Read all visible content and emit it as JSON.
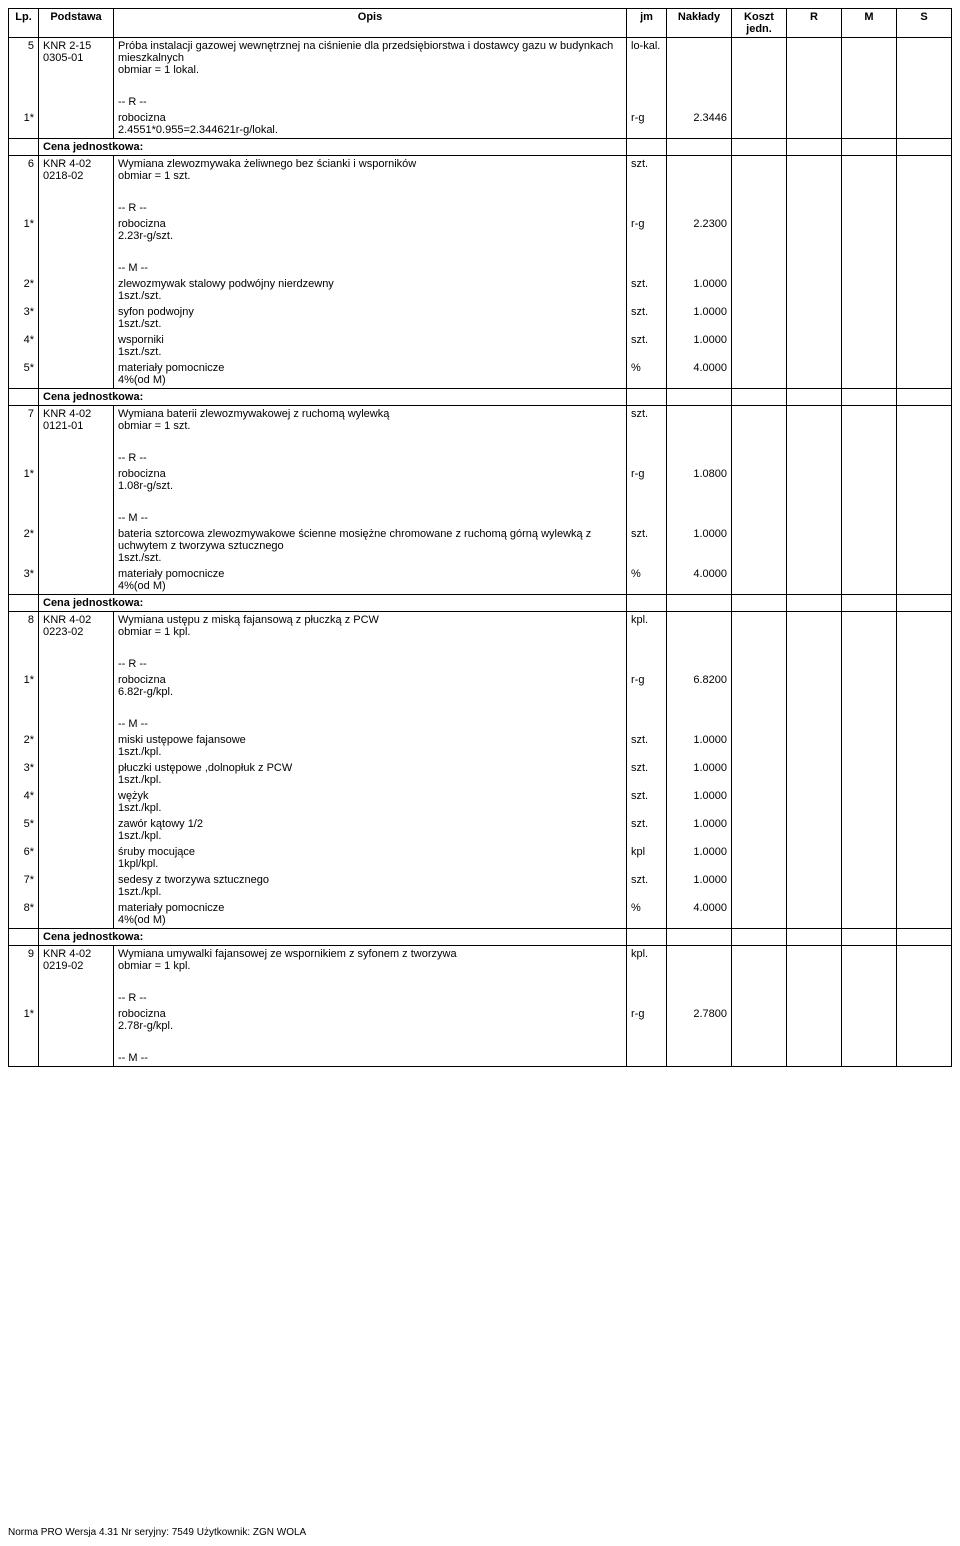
{
  "headers": {
    "lp": "Lp.",
    "podstawa": "Podstawa",
    "opis": "Opis",
    "jm": "jm",
    "naklady": "Nakłady",
    "koszt": "Koszt jedn.",
    "r": "R",
    "m": "M",
    "s": "S"
  },
  "cena_label": "Cena jednostkowa:",
  "r_label": "-- R --",
  "m_label": "-- M --",
  "rows": [
    {
      "lp": "5",
      "podstawa": "KNR 2-15\n0305-01",
      "opis": "Próba instalacji gazowej wewnętrznej na ciśnienie dla przedsiębiorstwa i dostawcy gazu w budynkach mieszkalnych\nobmiar  = 1 lokal.",
      "jm": "lo-kal."
    },
    {
      "blank": true
    },
    {
      "r": true
    },
    {
      "lp": "1*",
      "opis": "robocizna\n2.4551*0.955=2.344621r-g/lokal.",
      "jm": "r-g",
      "nak": "2.3446"
    },
    {
      "cena": true
    },
    {
      "lp": "6",
      "podstawa": "KNR 4-02\n0218-02",
      "opis": "Wymiana zlewozmywaka żeliwnego bez ścianki i wsporników\nobmiar  = 1 szt.",
      "jm": "szt."
    },
    {
      "blank": true
    },
    {
      "r": true
    },
    {
      "lp": "1*",
      "opis": "robocizna\n2.23r-g/szt.",
      "jm": "r-g",
      "nak": "2.2300"
    },
    {
      "blank": true
    },
    {
      "m": true
    },
    {
      "lp": "2*",
      "opis": "zlewozmywak stalowy podwójny nierdzewny\n1szt./szt.",
      "jm": "szt.",
      "nak": "1.0000"
    },
    {
      "lp": "3*",
      "opis": "syfon podwojny\n1szt./szt.",
      "jm": "szt.",
      "nak": "1.0000"
    },
    {
      "lp": "4*",
      "opis": "wsporniki\n1szt./szt.",
      "jm": "szt.",
      "nak": "1.0000"
    },
    {
      "lp": "5*",
      "opis": "materiały pomocnicze\n4%(od M)",
      "jm": "%",
      "nak": "4.0000"
    },
    {
      "cena": true
    },
    {
      "lp": "7",
      "podstawa": "KNR 4-02\n0121-01",
      "opis": "Wymiana baterii   zlewozmywakowej z ruchomą wylewką\nobmiar  = 1 szt.",
      "jm": "szt."
    },
    {
      "blank": true
    },
    {
      "r": true
    },
    {
      "lp": "1*",
      "opis": "robocizna\n1.08r-g/szt.",
      "jm": "r-g",
      "nak": "1.0800"
    },
    {
      "blank": true
    },
    {
      "m": true
    },
    {
      "lp": "2*",
      "opis": "bateria   sztorcowa  zlewozmywakowe ścienne mosiężne chromowane z ruchomą górną wylewką z uchwytem z tworzywa sztucznego\n1szt./szt.",
      "jm": "szt.",
      "nak": "1.0000"
    },
    {
      "lp": "3*",
      "opis": "materiały pomocnicze\n4%(od M)",
      "jm": "%",
      "nak": "4.0000"
    },
    {
      "cena": true
    },
    {
      "lp": "8",
      "podstawa": "KNR 4-02\n0223-02",
      "opis": "Wymiana ustępu z miską fajansową z płuczką z PCW\nobmiar  = 1 kpl.",
      "jm": "kpl."
    },
    {
      "blank": true
    },
    {
      "r": true
    },
    {
      "lp": "1*",
      "opis": "robocizna\n6.82r-g/kpl.",
      "jm": "r-g",
      "nak": "6.8200"
    },
    {
      "blank": true
    },
    {
      "m": true
    },
    {
      "lp": "2*",
      "opis": "miski ustępowe fajansowe\n1szt./kpl.",
      "jm": "szt.",
      "nak": "1.0000"
    },
    {
      "lp": "3*",
      "opis": "płuczki ustępowe ,dolnopłuk z PCW\n1szt./kpl.",
      "jm": "szt.",
      "nak": "1.0000"
    },
    {
      "lp": "4*",
      "opis": "wężyk\n1szt./kpl.",
      "jm": "szt.",
      "nak": "1.0000"
    },
    {
      "lp": "5*",
      "opis": "zawór kątowy 1/2\n1szt./kpl.",
      "jm": "szt.",
      "nak": "1.0000"
    },
    {
      "lp": "6*",
      "opis": "śruby mocujące\n1kpl/kpl.",
      "jm": "kpl",
      "nak": "1.0000"
    },
    {
      "lp": "7*",
      "opis": "sedesy z tworzywa sztucznego\n1szt./kpl.",
      "jm": "szt.",
      "nak": "1.0000"
    },
    {
      "lp": "8*",
      "opis": "materiały pomocnicze\n4%(od M)",
      "jm": "%",
      "nak": "4.0000"
    },
    {
      "cena": true
    },
    {
      "lp": "9",
      "podstawa": "KNR 4-02\n0219-02",
      "opis": "Wymiana umywalki fajansowej ze wspornikiem z syfonem z tworzywa\nobmiar  = 1 kpl.",
      "jm": "kpl."
    },
    {
      "blank": true
    },
    {
      "r": true
    },
    {
      "lp": "1*",
      "opis": "robocizna\n2.78r-g/kpl.",
      "jm": "r-g",
      "nak": "2.7800"
    },
    {
      "blank": true
    },
    {
      "m": true
    }
  ],
  "footer": "Norma PRO Wersja 4.31 Nr seryjny: 7549 Użytkownik: ZGN WOLA"
}
